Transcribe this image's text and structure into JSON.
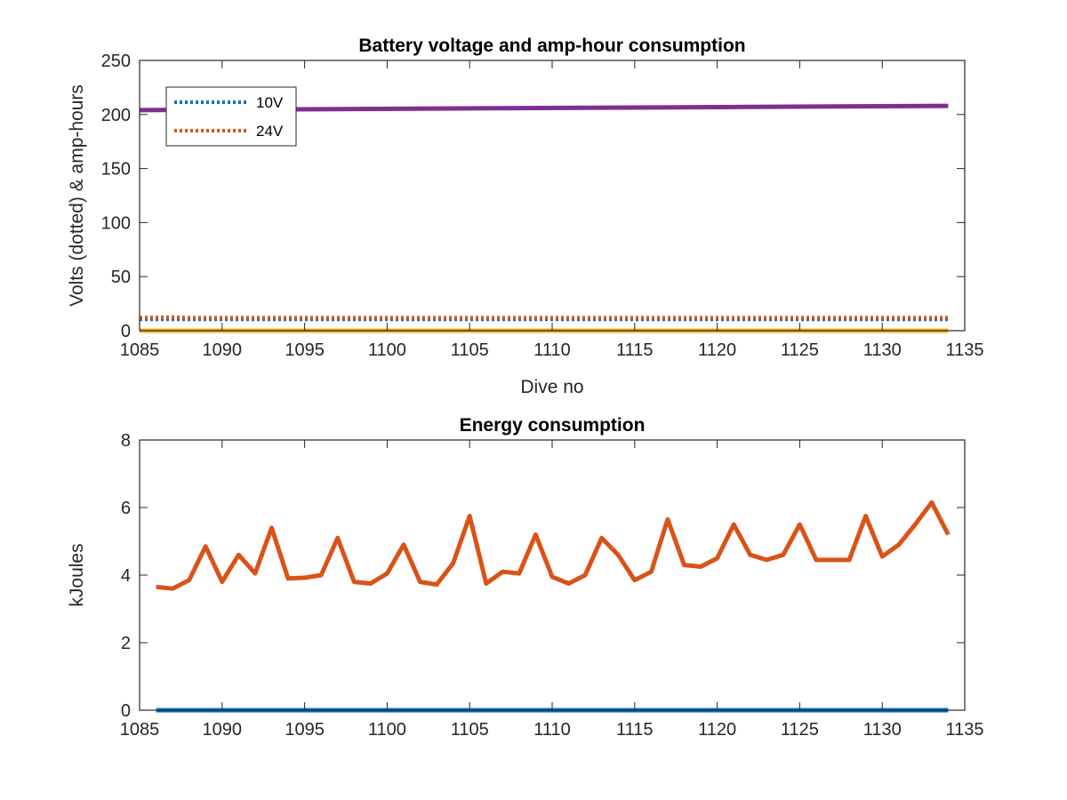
{
  "colors": {
    "blue": "#0072bd",
    "orange": "#d95319",
    "yellow": "#edb120",
    "purple": "#7e2f8e",
    "axis": "#262626"
  },
  "chart_data": [
    {
      "type": "line",
      "title": "Battery voltage and amp-hour consumption",
      "xlabel": "Dive no",
      "ylabel": "Volts (dotted) & amp-hours",
      "xlim": [
        1085,
        1135
      ],
      "ylim": [
        0,
        250
      ],
      "xticks": [
        1085,
        1090,
        1095,
        1100,
        1105,
        1110,
        1115,
        1120,
        1125,
        1130,
        1135
      ],
      "yticks": [
        0,
        50,
        100,
        150,
        200,
        250
      ],
      "grid": false,
      "legend": {
        "placement": "top-left",
        "entries": [
          "10V",
          "24V"
        ]
      },
      "series": [
        {
          "name": "10V",
          "style": "dotted",
          "color": "#0072bd",
          "x": [
            1085,
            1134
          ],
          "values": [
            10.5,
            10.5
          ]
        },
        {
          "name": "24V",
          "style": "dotted",
          "color": "#d95319",
          "x": [
            1085,
            1087,
            1088,
            1100,
            1134
          ],
          "values": [
            12,
            12.5,
            12,
            12,
            12
          ]
        },
        {
          "style": "solid",
          "color": "#edb120",
          "x": [
            1085,
            1134
          ],
          "values": [
            0,
            0
          ]
        },
        {
          "style": "solid",
          "color": "#7e2f8e",
          "x": [
            1085,
            1134
          ],
          "values": [
            204,
            208
          ]
        }
      ]
    },
    {
      "type": "line",
      "title": "Energy consumption",
      "xlabel": "",
      "ylabel": "kJoules",
      "xlim": [
        1085,
        1135
      ],
      "ylim": [
        0,
        8
      ],
      "xticks": [
        1085,
        1090,
        1095,
        1100,
        1105,
        1110,
        1115,
        1120,
        1125,
        1130,
        1135
      ],
      "yticks": [
        0,
        2,
        4,
        6,
        8
      ],
      "grid": false,
      "series": [
        {
          "style": "solid",
          "color": "#d95319",
          "x": [
            1086,
            1087,
            1088,
            1089,
            1090,
            1091,
            1092,
            1093,
            1094,
            1095,
            1096,
            1097,
            1098,
            1099,
            1100,
            1101,
            1102,
            1103,
            1104,
            1105,
            1106,
            1107,
            1108,
            1109,
            1110,
            1111,
            1112,
            1113,
            1114,
            1115,
            1116,
            1117,
            1118,
            1119,
            1120,
            1121,
            1122,
            1123,
            1124,
            1125,
            1126,
            1127,
            1128,
            1129,
            1130,
            1131,
            1132,
            1133,
            1134
          ],
          "values": [
            3.65,
            3.6,
            3.85,
            4.85,
            3.8,
            4.6,
            4.05,
            5.4,
            3.9,
            3.92,
            4.0,
            5.1,
            3.8,
            3.75,
            4.05,
            4.9,
            3.8,
            3.72,
            4.35,
            5.75,
            3.75,
            4.1,
            4.05,
            5.2,
            3.95,
            3.75,
            4.0,
            5.1,
            4.6,
            3.85,
            4.1,
            5.65,
            4.3,
            4.25,
            4.5,
            5.5,
            4.6,
            4.45,
            4.6,
            5.5,
            4.45,
            4.45,
            4.45,
            5.75,
            4.55,
            4.9,
            5.5,
            6.15,
            5.2
          ]
        },
        {
          "style": "solid",
          "color": "#0072bd",
          "x": [
            1086,
            1134
          ],
          "values": [
            0,
            0
          ]
        }
      ]
    }
  ]
}
